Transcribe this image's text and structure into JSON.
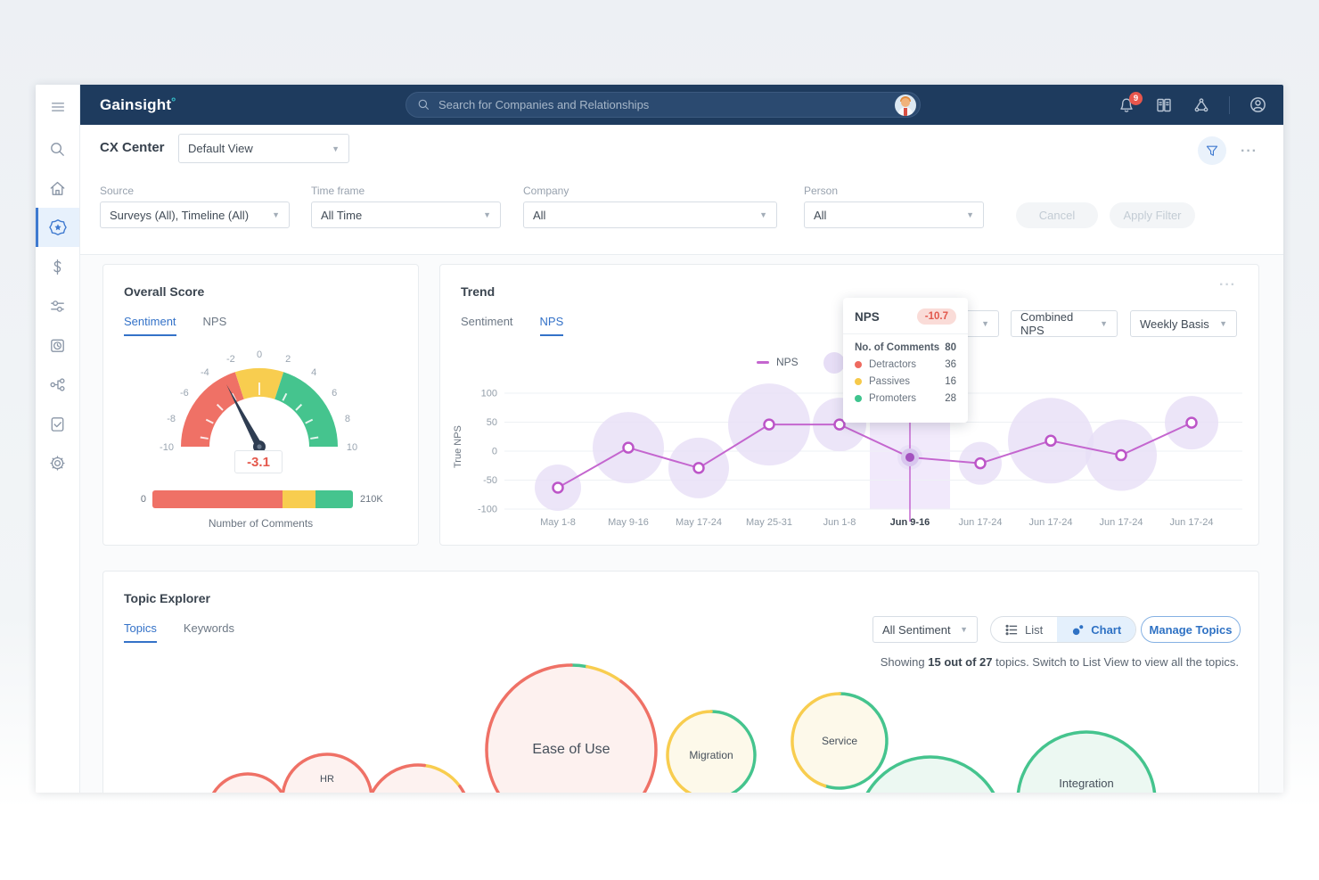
{
  "navbar": {
    "logo": "Gainsight",
    "search_placeholder": "Search for Companies and Relationships",
    "notification_count": "9"
  },
  "header": {
    "title": "CX Center",
    "view_selector": "Default View",
    "menu_dots": "···"
  },
  "filters": {
    "source_label": "Source",
    "source_value": "Surveys (All), Timeline (All)",
    "timeframe_label": "Time frame",
    "timeframe_value": "All Time",
    "company_label": "Company",
    "company_value": "All",
    "person_label": "Person",
    "person_value": "All",
    "cancel_label": "Cancel",
    "apply_label": "Apply Filter"
  },
  "icons": {
    "sidebar": [
      "menu",
      "search",
      "home",
      "cx-center",
      "revenue",
      "journey",
      "timeline",
      "relationships",
      "surveys",
      "settings"
    ],
    "navbar": [
      "notifications-bell",
      "knowledge-book",
      "network-share",
      "user-profile"
    ],
    "header": [
      "filter-funnel",
      "more-dots"
    ]
  },
  "overall_score": {
    "title": "Overall Score",
    "tab_sentiment": "Sentiment",
    "tab_nps": "NPS",
    "value": "-3.1",
    "bar_min_label": "0",
    "bar_max_label": "210K",
    "bar_caption": "Number of Comments"
  },
  "trend": {
    "title": "Trend",
    "menu_dots": "···",
    "tab_sentiment": "Sentiment",
    "tab_nps": "NPS",
    "metric_dropdown": "Combined NPS",
    "period_dropdown": "Weekly Basis",
    "legend_label": "NPS",
    "ylabel": "True NPS",
    "tooltip": {
      "title": "NPS",
      "badge": "-10.7",
      "comments_label": "No. of Comments",
      "comments_value": "80",
      "rows": [
        {
          "label": "Detractors",
          "value": "36",
          "color": "#ee6a5f"
        },
        {
          "label": "Passives",
          "value": "16",
          "color": "#f6c94a"
        },
        {
          "label": "Promoters",
          "value": "28",
          "color": "#3fc48e"
        }
      ]
    }
  },
  "topic_explorer": {
    "title": "Topic Explorer",
    "tab_topics": "Topics",
    "tab_keywords": "Keywords",
    "sentiment_dropdown": "All Sentiment",
    "list_label": "List",
    "chart_label": "Chart",
    "manage_label": "Manage Topics",
    "showing_prefix": "Showing ",
    "showing_bold": "15 out of 27",
    "showing_suffix": " topics. Switch to List View to view all the topics."
  },
  "chart_data": [
    {
      "type": "gauge",
      "title": "Overall Score (Sentiment)",
      "min": -10,
      "max": 10,
      "value": -3.1,
      "ticks": [
        -10,
        -8,
        -6,
        -4,
        -2,
        0,
        2,
        4,
        6,
        8,
        10
      ],
      "zones": [
        {
          "from": -10,
          "to": -2,
          "color": "#ef7166"
        },
        {
          "from": -2,
          "to": 2,
          "color": "#f8cd4f"
        },
        {
          "from": 2,
          "to": 10,
          "color": "#45c48e"
        }
      ],
      "comments_bar": {
        "caption": "Number of Comments",
        "min_label": "0",
        "max_label": "210K",
        "segments": [
          {
            "name": "negative",
            "color": "#ef7166",
            "fraction": 0.65
          },
          {
            "name": "neutral",
            "color": "#f8cd4f",
            "fraction": 0.165
          },
          {
            "name": "positive",
            "color": "#45c48e",
            "fraction": 0.185
          }
        ]
      }
    },
    {
      "type": "line",
      "title": "Trend (NPS, Weekly Basis)",
      "ylabel": "True NPS",
      "ylim": [
        -100,
        100
      ],
      "yticks": [
        100,
        50,
        0,
        -50,
        -100
      ],
      "categories": [
        "May 1-8",
        "May 9-16",
        "May 17-24",
        "May 25-31",
        "Jun 1-8",
        "Jun 9-16",
        "Jun 17-24",
        "Jun 17-24",
        "Jun 17-24",
        "Jun 17-24"
      ],
      "series": [
        {
          "name": "NPS",
          "color": "#c466cf",
          "values": [
            -63,
            6,
            -29,
            46,
            46,
            -10.7,
            -21,
            18,
            -7,
            49
          ]
        }
      ],
      "bubble_radii": [
        26,
        40,
        34,
        46,
        30,
        14,
        24,
        48,
        40,
        30
      ],
      "bubble_color": "#e7def6",
      "active_index": 5,
      "active_label": "Jun 9-16",
      "legend_position": "top"
    },
    {
      "type": "bubble",
      "title": "Topic Explorer (Topics)",
      "ring_width": 3.5,
      "topics": [
        {
          "label": "",
          "x": 160,
          "y": 172,
          "r": 45,
          "fill": "#fdf2f0",
          "segments": [
            {
              "color": "#ef7166",
              "from": 0,
              "to": 1
            }
          ]
        },
        {
          "label": "HR",
          "x": 249,
          "y": 155,
          "r": 50,
          "fill": "#fdf2f0",
          "font_size": 11,
          "label_dy": -23,
          "segments": [
            {
              "color": "#ef7166",
              "from": 0,
              "to": 1
            }
          ]
        },
        {
          "label": "",
          "x": 351,
          "y": 175,
          "r": 58,
          "fill": "#fdf2f0",
          "segments": [
            {
              "color": "#f8cd4f",
              "from": 0.02,
              "to": 0.15
            },
            {
              "color": "#ef7166",
              "from": 0.15,
              "to": 1.02
            }
          ]
        },
        {
          "label": "Ease of Use",
          "x": 523,
          "y": 100,
          "r": 95,
          "fill": "#fdf1ef",
          "font_size": 16,
          "segments": [
            {
              "color": "#45c48e",
              "from": 0,
              "to": 0.03
            },
            {
              "color": "#f8cd4f",
              "from": 0.03,
              "to": 0.1
            },
            {
              "color": "#ef7166",
              "from": 0.1,
              "to": 1
            }
          ]
        },
        {
          "label": "Migration",
          "x": 680,
          "y": 106,
          "r": 49,
          "fill": "#fdf9ea",
          "font_size": 12,
          "segments": [
            {
              "color": "#45c48e",
              "from": 0,
              "to": 0.47
            },
            {
              "color": "#f8cd4f",
              "from": 0.47,
              "to": 1
            }
          ]
        },
        {
          "label": "Service",
          "x": 824,
          "y": 90,
          "r": 53,
          "fill": "#fdf9ea",
          "font_size": 12,
          "segments": [
            {
              "color": "#45c48e",
              "from": 0,
              "to": 0.55
            },
            {
              "color": "#f8cd4f",
              "from": 0.55,
              "to": 1
            }
          ]
        },
        {
          "label": "",
          "x": 926,
          "y": 190,
          "r": 82,
          "fill": "#ecf8f2",
          "segments": [
            {
              "color": "#45c48e",
              "from": 0,
              "to": 1
            }
          ]
        },
        {
          "label": "Integration",
          "x": 1101,
          "y": 157,
          "r": 77,
          "fill": "#ecf8f2",
          "font_size": 13,
          "label_dy": -19,
          "segments": [
            {
              "color": "#45c48e",
              "from": 0,
              "to": 1
            }
          ]
        }
      ]
    }
  ]
}
